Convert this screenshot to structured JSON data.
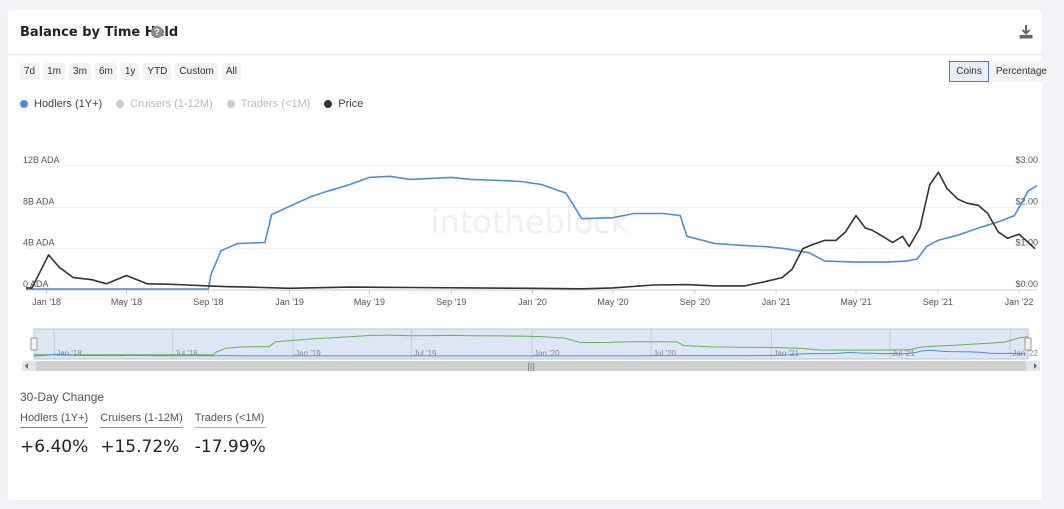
{
  "header": {
    "title": "Balance by Time Held",
    "help_icon": "question-circle-icon",
    "download_icon": "download-icon"
  },
  "range_buttons": [
    "7d",
    "1m",
    "3m",
    "6m",
    "1y",
    "YTD",
    "Custom",
    "All"
  ],
  "mode_buttons": [
    {
      "label": "Coins",
      "active": true
    },
    {
      "label": "Percentage",
      "active": false
    }
  ],
  "legend": [
    {
      "label": "Hodlers (1Y+)",
      "color": "#4a8fd8",
      "active": true
    },
    {
      "label": "Cruisers (1-12M)",
      "color": "#cccccc",
      "active": false
    },
    {
      "label": "Traders (<1M)",
      "color": "#cccccc",
      "active": false
    },
    {
      "label": "Price",
      "color": "#333333",
      "active": true
    }
  ],
  "watermark": "intotheblock",
  "navigator": {
    "labels": [
      "Jan '18",
      "Jul '18",
      "Jan '19",
      "Jul '19",
      "Jan '20",
      "Jul '20",
      "Jan '21",
      "Jul '21",
      "Jan '22"
    ],
    "scroll_grip": "|||"
  },
  "change_section": {
    "title": "30-Day Change",
    "items": [
      {
        "label": "Hodlers (1Y+)",
        "value": "+6.40%",
        "color": "#4a8fd8"
      },
      {
        "label": "Cruisers (1-12M)",
        "value": "+15.72%",
        "color": "#6ab04c"
      },
      {
        "label": "Traders (<1M)",
        "value": "-17.99%",
        "color": "#e8a06a"
      }
    ]
  },
  "chart_data": {
    "type": "line",
    "x_tick_labels": [
      "Jan '18",
      "May '18",
      "Sep '18",
      "Jan '19",
      "May '19",
      "Sep '19",
      "Jan '20",
      "May '20",
      "Sep '20",
      "Jan '21",
      "May '21",
      "Sep '21",
      "Jan '22"
    ],
    "y_left_ticks": [
      "0 ADA",
      "4B ADA",
      "8B ADA",
      "12B ADA"
    ],
    "y_left_range": [
      0,
      12
    ],
    "y_right_ticks": [
      "$0.00",
      "$1.00",
      "$2.00",
      "$3.00"
    ],
    "y_right_range": [
      0,
      3
    ],
    "grid": true,
    "series": [
      {
        "name": "Hodlers (1Y+)",
        "color": "#4a8fd8",
        "axis": "left",
        "unit": "B ADA",
        "x": [
          "2017-12-01",
          "2018-01-01",
          "2018-03-01",
          "2018-05-01",
          "2018-07-01",
          "2018-09-01",
          "2018-09-05",
          "2018-09-20",
          "2018-10-15",
          "2018-11-25",
          "2018-12-05",
          "2019-01-01",
          "2019-02-01",
          "2019-03-01",
          "2019-04-01",
          "2019-05-01",
          "2019-06-01",
          "2019-07-01",
          "2019-08-01",
          "2019-09-01",
          "2019-10-01",
          "2019-11-15",
          "2019-12-15",
          "2020-01-15",
          "2020-02-10",
          "2020-02-20",
          "2020-03-15",
          "2020-05-01",
          "2020-06-01",
          "2020-07-15",
          "2020-08-10",
          "2020-08-20",
          "2020-10-01",
          "2020-11-15",
          "2020-12-15",
          "2021-01-15",
          "2021-02-20",
          "2021-03-15",
          "2021-05-01",
          "2021-06-15",
          "2021-07-15",
          "2021-08-01",
          "2021-08-15",
          "2021-09-01",
          "2021-10-01",
          "2021-11-01",
          "2021-12-01",
          "2021-12-25",
          "2022-01-15",
          "2022-01-28"
        ],
        "values": [
          0.1,
          0.1,
          0.1,
          0.1,
          0.1,
          0.1,
          1.5,
          3.8,
          4.5,
          4.6,
          7.3,
          8.1,
          9.0,
          9.6,
          10.2,
          10.9,
          11.0,
          10.7,
          10.8,
          10.9,
          10.7,
          10.6,
          10.5,
          10.2,
          9.6,
          9.4,
          6.9,
          7.0,
          7.4,
          7.4,
          7.2,
          5.2,
          4.5,
          4.3,
          4.2,
          4.0,
          3.6,
          2.8,
          2.7,
          2.7,
          2.8,
          3.0,
          4.2,
          4.8,
          5.3,
          6.0,
          6.6,
          7.2,
          9.6,
          10.1
        ]
      },
      {
        "name": "Price",
        "color": "#333333",
        "axis": "right",
        "unit": "$",
        "x": [
          "2017-12-01",
          "2017-12-10",
          "2018-01-04",
          "2018-01-20",
          "2018-02-10",
          "2018-03-10",
          "2018-04-01",
          "2018-05-01",
          "2018-06-01",
          "2018-07-01",
          "2018-08-01",
          "2018-09-01",
          "2018-10-01",
          "2018-11-01",
          "2019-01-01",
          "2019-04-01",
          "2019-07-01",
          "2019-10-01",
          "2020-01-01",
          "2020-03-15",
          "2020-05-01",
          "2020-07-01",
          "2020-08-20",
          "2020-10-01",
          "2020-11-15",
          "2020-12-15",
          "2021-01-10",
          "2021-01-25",
          "2021-02-10",
          "2021-02-25",
          "2021-03-15",
          "2021-04-01",
          "2021-04-15",
          "2021-05-01",
          "2021-05-15",
          "2021-05-25",
          "2021-06-10",
          "2021-06-25",
          "2021-07-10",
          "2021-07-20",
          "2021-08-05",
          "2021-08-20",
          "2021-09-02",
          "2021-09-15",
          "2021-10-01",
          "2021-10-15",
          "2021-11-01",
          "2021-11-15",
          "2021-12-01",
          "2021-12-15",
          "2022-01-01",
          "2022-01-15",
          "2022-01-25"
        ],
        "values": [
          0.05,
          0.05,
          0.85,
          0.55,
          0.3,
          0.25,
          0.15,
          0.35,
          0.15,
          0.14,
          0.12,
          0.1,
          0.08,
          0.07,
          0.04,
          0.07,
          0.06,
          0.05,
          0.04,
          0.03,
          0.05,
          0.12,
          0.13,
          0.1,
          0.1,
          0.2,
          0.3,
          0.5,
          1.0,
          1.1,
          1.2,
          1.2,
          1.4,
          1.8,
          1.5,
          1.45,
          1.3,
          1.15,
          1.3,
          1.05,
          1.5,
          2.55,
          2.85,
          2.45,
          2.2,
          2.1,
          2.05,
          1.85,
          1.4,
          1.25,
          1.35,
          1.15,
          1.0
        ]
      }
    ]
  }
}
